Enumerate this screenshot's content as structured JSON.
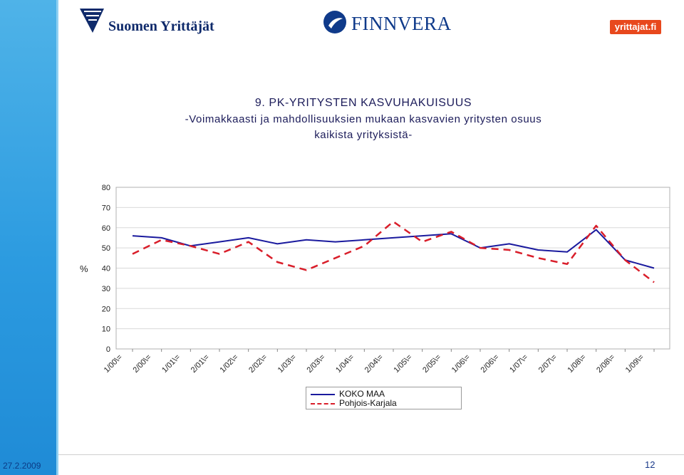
{
  "header": {
    "logos": {
      "suomen_yrittajat": "Suomen Yrittäjät",
      "finnvera": "FINNVERA",
      "yrittajat_fi": "yrittajat.fi"
    }
  },
  "title": {
    "line1": "9. PK-YRITYSTEN KASVUHAKUISUUS",
    "line2": "-Voimakkaasti ja mahdollisuuksien mukaan kasvavien yritysten osuus",
    "line3": "kaikista yrityksistä-"
  },
  "footer": {
    "date": "27.2.2009",
    "page": "12"
  },
  "colors": {
    "series_koko_maa": "#1a1a9e",
    "series_pohjois_karjala": "#d91e2a",
    "sidebar": "#2c9be0"
  },
  "chart_data": {
    "type": "line",
    "ylabel": "%",
    "ylim": [
      0,
      80
    ],
    "yticks": [
      "0",
      "10",
      "20",
      "30",
      "40",
      "50",
      "60",
      "70",
      "80"
    ],
    "categories": [
      "1/00\\=",
      "2/00\\=",
      "1/01\\=",
      "2/01\\=",
      "1/02\\=",
      "2/02\\=",
      "1/03\\=",
      "2/03\\=",
      "1/04\\=",
      "2/04\\=",
      "1/05\\=",
      "2/05\\=",
      "1/06\\=",
      "2/06\\=",
      "1/07\\=",
      "2/07\\=",
      "1/08\\=",
      "2/08\\=",
      "1/09\\="
    ],
    "grid": "horizontal",
    "legend_position": "bottom",
    "series": [
      {
        "name": "KOKO MAA",
        "style": "solid",
        "values": [
          56,
          55,
          51,
          53,
          55,
          52,
          54,
          53,
          54,
          55,
          56,
          57,
          50,
          52,
          49,
          48,
          59,
          44,
          40
        ]
      },
      {
        "name": "Pohjois-Karjala",
        "style": "dashed",
        "values": [
          47,
          54,
          51,
          47,
          53,
          43,
          39,
          45,
          51,
          63,
          53,
          58,
          50,
          49,
          45,
          42,
          61,
          44,
          33
        ]
      }
    ]
  }
}
